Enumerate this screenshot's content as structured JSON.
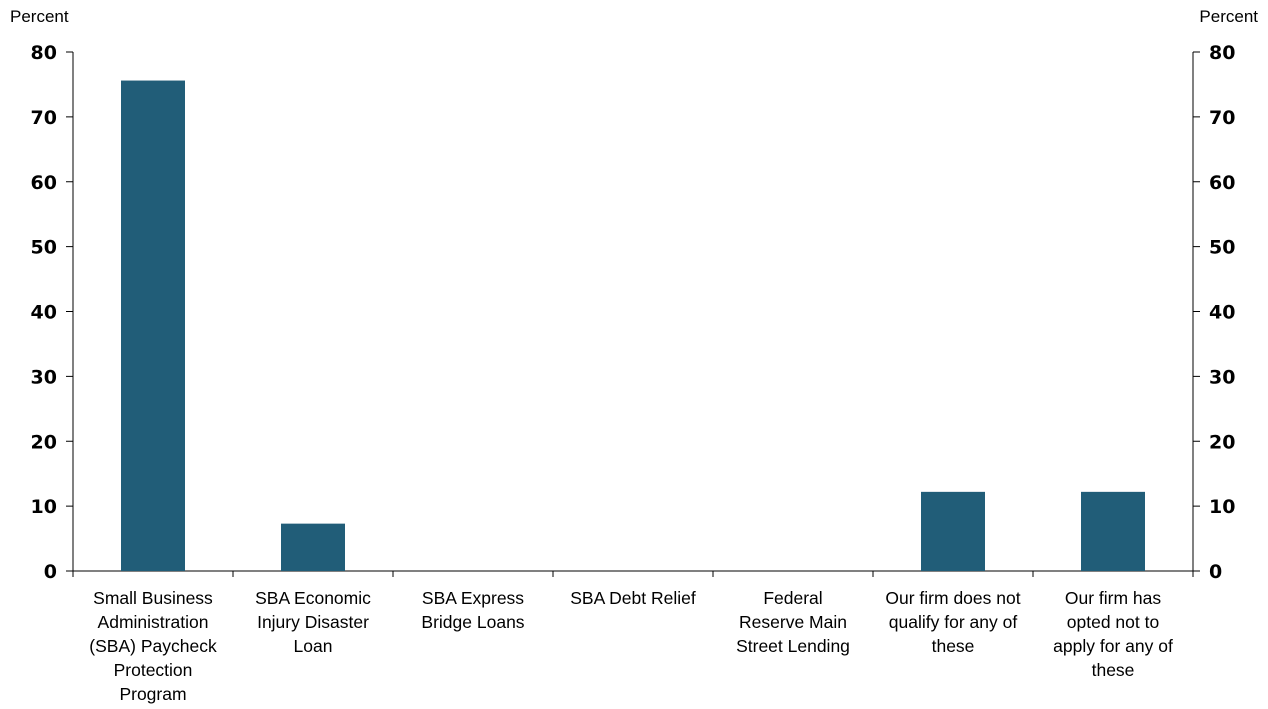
{
  "chart_data": {
    "type": "bar",
    "title": "",
    "ylabel_left": "Percent",
    "ylabel_right": "Percent",
    "ylim": [
      0,
      80
    ],
    "yticks": [
      0,
      10,
      20,
      30,
      40,
      50,
      60,
      70,
      80
    ],
    "grid": false,
    "legend": "none",
    "categories": [
      "Small Business Administration (SBA) Paycheck Protection Program",
      "SBA Economic Injury Disaster Loan",
      "SBA Express Bridge Loans",
      "SBA Debt Relief",
      "Federal Reserve Main Street Lending",
      "Our firm does not qualify for any of these",
      "Our firm has opted not to apply for any of these"
    ],
    "category_lines": [
      [
        "Small Business",
        "Administration",
        "(SBA) Paycheck",
        "Protection",
        "Program"
      ],
      [
        "SBA Economic",
        "Injury Disaster",
        "Loan"
      ],
      [
        "SBA Express",
        "Bridge Loans"
      ],
      [
        "SBA Debt Relief"
      ],
      [
        "Federal",
        "Reserve Main",
        "Street Lending"
      ],
      [
        "Our firm does not",
        "qualify for any of",
        "these"
      ],
      [
        "Our firm has",
        "opted not to",
        "apply for any of",
        "these"
      ]
    ],
    "values": [
      75.6,
      7.3,
      0,
      0,
      0,
      12.2,
      12.2
    ],
    "bar_color": "#215d78",
    "axis_color": "#000000"
  }
}
